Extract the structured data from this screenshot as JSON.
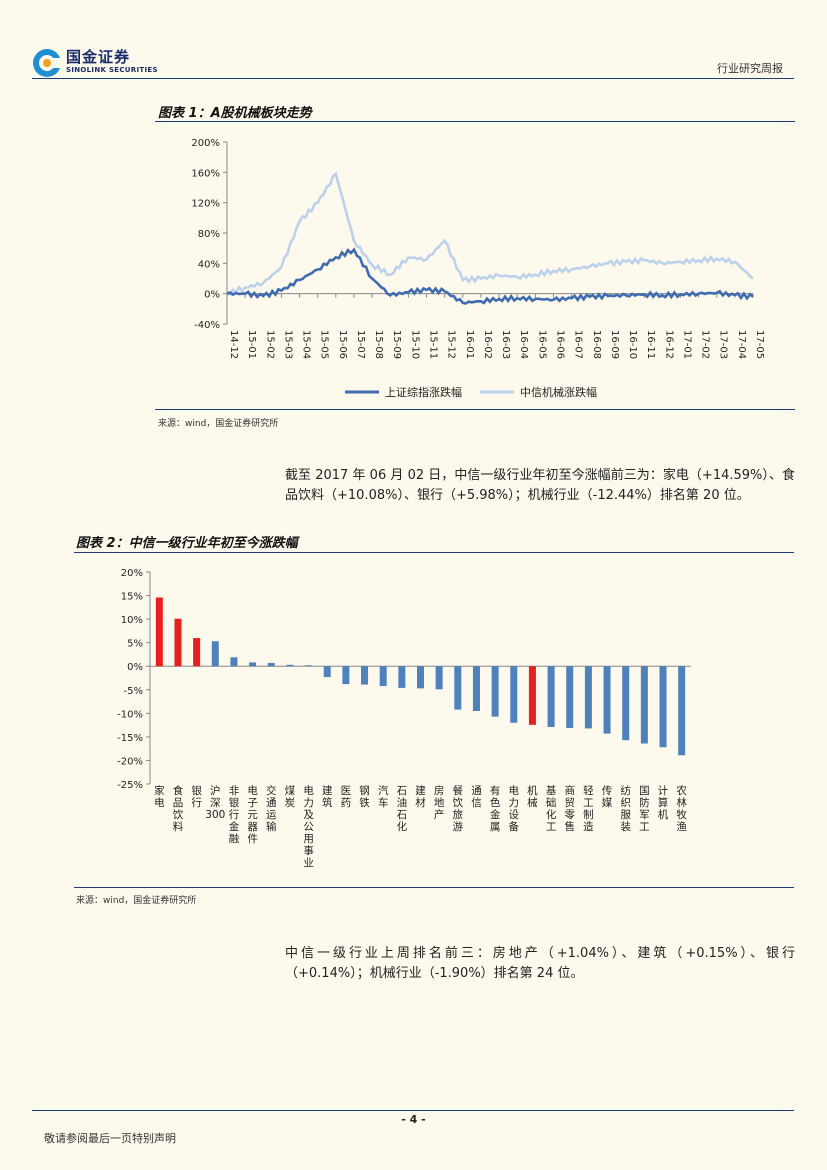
{
  "header": {
    "logo_cn": "国金证券",
    "logo_en": "SINOLINK SECURITIES",
    "report_type": "行业研究周报"
  },
  "figure1": {
    "title": "图表 1：A股机械板块走势",
    "source": "来源：wind，国金证券研究所"
  },
  "figure2": {
    "title": "图表 2：中信一级行业年初至今涨跌幅",
    "source": "来源：wind，国金证券研究所"
  },
  "paragraph1": "截至 2017 年 06 月 02 日，中信一级行业年初至今涨幅前三为：家电（+14.59%）、食品饮料（+10.08%）、银行（+5.98%）；机械行业（-12.44%）排名第 20 位。",
  "paragraph2": "中信一级行业上周排名前三：房地产（+1.04%）、建筑（+0.15%）、银行（+0.14%）；机械行业（-1.90%）排名第 24 位。",
  "footer": {
    "page": "- 4 -",
    "disclaimer": "敬请参阅最后一页特别声明"
  },
  "chart_data": [
    {
      "type": "line",
      "title": "图表 1：A股机械板块走势",
      "x_ticks": [
        "14-12",
        "15-01",
        "15-02",
        "15-03",
        "15-04",
        "15-05",
        "15-06",
        "15-07",
        "15-08",
        "15-09",
        "15-10",
        "15-11",
        "15-12",
        "16-01",
        "16-02",
        "16-03",
        "16-04",
        "16-05",
        "16-06",
        "16-07",
        "16-08",
        "16-09",
        "16-10",
        "16-11",
        "16-12",
        "17-01",
        "17-02",
        "17-03",
        "17-04",
        "17-05"
      ],
      "ylim": [
        -40,
        200
      ],
      "y_ticks": [
        "-40%",
        "0%",
        "40%",
        "80%",
        "120%",
        "160%",
        "200%"
      ],
      "y_tick_values": [
        -40,
        0,
        40,
        80,
        120,
        160,
        200
      ],
      "series": [
        {
          "name": "上证综指涨跌幅",
          "color": "#3f6cb0",
          "values": [
            0,
            0,
            -3,
            4,
            18,
            32,
            48,
            58,
            20,
            -2,
            2,
            5,
            3,
            -12,
            -10,
            -7,
            -6,
            -7,
            -8,
            -6,
            -4,
            -3,
            -2,
            -1,
            -2,
            -1,
            0,
            1,
            -2,
            -4
          ]
        },
        {
          "name": "中信机械涨跌幅",
          "color": "#bcd1ec",
          "values": [
            0,
            8,
            14,
            35,
            95,
            120,
            158,
            70,
            38,
            25,
            48,
            45,
            70,
            18,
            20,
            24,
            22,
            25,
            30,
            32,
            36,
            40,
            42,
            44,
            40,
            42,
            44,
            46,
            42,
            20
          ]
        }
      ]
    },
    {
      "type": "bar",
      "title": "图表 2：中信一级行业年初至今涨跌幅",
      "ylim": [
        -25,
        20
      ],
      "y_ticks": [
        "-25%",
        "-20%",
        "-15%",
        "-10%",
        "-5%",
        "0%",
        "5%",
        "10%",
        "15%",
        "20%"
      ],
      "y_tick_values": [
        -25,
        -20,
        -15,
        -10,
        -5,
        0,
        5,
        10,
        15,
        20
      ],
      "categories": [
        "家电",
        "食品饮料",
        "银行",
        "沪深300",
        "非银行金融",
        "电子元器件",
        "交通运输",
        "煤炭",
        "电力及公用事业",
        "建筑",
        "医药",
        "钢铁",
        "汽车",
        "石油石化",
        "建材",
        "房地产",
        "餐饮旅游",
        "通信",
        "有色金属",
        "电力设备",
        "机械",
        "基础化工",
        "商贸零售",
        "轻工制造",
        "传媒",
        "纺织服装",
        "国防军工",
        "计算机",
        "农林牧渔"
      ],
      "values": [
        14.59,
        10.08,
        5.98,
        5.3,
        1.9,
        0.8,
        0.7,
        0.3,
        0.2,
        -2.3,
        -3.8,
        -3.9,
        -4.2,
        -4.6,
        -4.7,
        -4.9,
        -9.2,
        -9.5,
        -10.7,
        -12.0,
        -12.44,
        -12.9,
        -13.1,
        -13.2,
        -14.3,
        -15.7,
        -16.4,
        -17.2,
        -18.9
      ],
      "highlight_colors": [
        "#e82020",
        "#e82020",
        "#e82020",
        "#4f81bd",
        "#4f81bd",
        "#4f81bd",
        "#4f81bd",
        "#4f81bd",
        "#4f81bd",
        "#4f81bd",
        "#4f81bd",
        "#4f81bd",
        "#4f81bd",
        "#4f81bd",
        "#4f81bd",
        "#4f81bd",
        "#4f81bd",
        "#4f81bd",
        "#4f81bd",
        "#4f81bd",
        "#e82020",
        "#4f81bd",
        "#4f81bd",
        "#4f81bd",
        "#4f81bd",
        "#4f81bd",
        "#4f81bd",
        "#4f81bd",
        "#4f81bd"
      ]
    }
  ]
}
